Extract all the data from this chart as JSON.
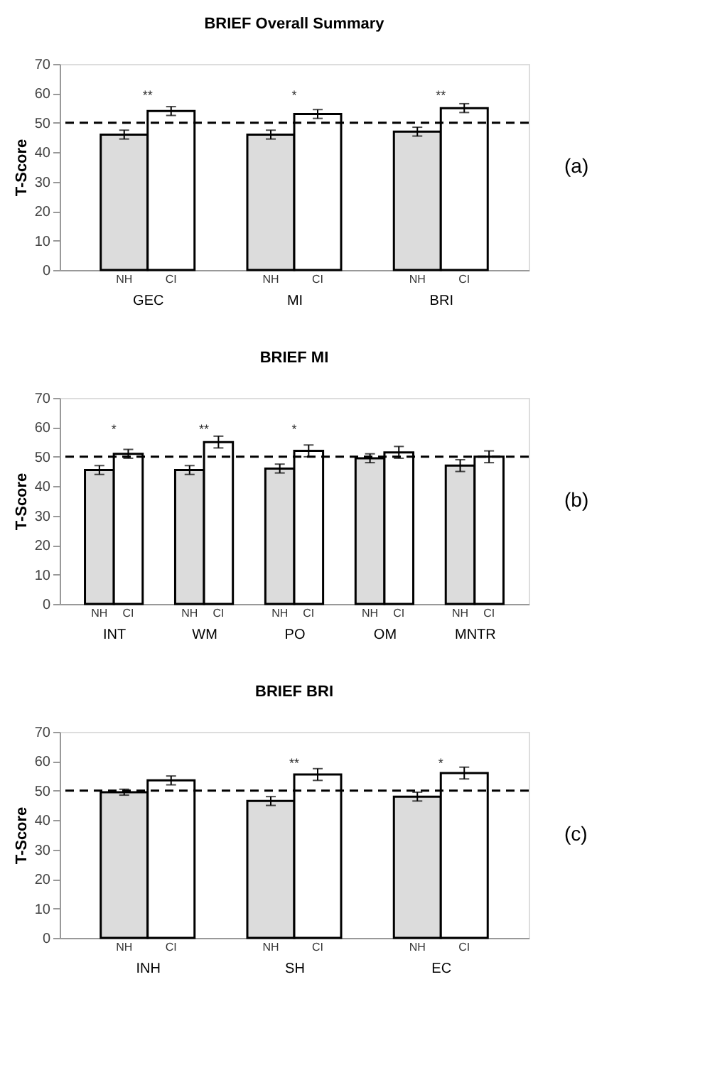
{
  "chart_data": [
    {
      "type": "bar",
      "title": "BRIEF Overall Summary",
      "ylabel": "T-Score",
      "categories": [
        "GEC",
        "MI",
        "BRI"
      ],
      "series": [
        {
          "name": "NH",
          "color": "#dcdcdc",
          "values": [
            46,
            46,
            47
          ],
          "errors": [
            1.5,
            1.5,
            1.5
          ]
        },
        {
          "name": "CI",
          "color": "#ffffff",
          "values": [
            54,
            53,
            55
          ],
          "errors": [
            1.5,
            1.5,
            1.5
          ]
        }
      ],
      "ylim": [
        0,
        70
      ],
      "yticks": [
        0,
        10,
        20,
        30,
        40,
        50,
        60,
        70
      ],
      "grid": false,
      "legend": false,
      "ref_lines": [
        {
          "axis": "y",
          "value": 50,
          "line_style": "dashed",
          "color": "#000000"
        }
      ],
      "annotations": [
        "**",
        "*",
        "**",
        "(a)"
      ]
    },
    {
      "type": "bar",
      "title": "BRIEF MI",
      "ylabel": "T-Score",
      "categories": [
        "INT",
        "WM",
        "PO",
        "OM",
        "MNTR"
      ],
      "series": [
        {
          "name": "NH",
          "color": "#dcdcdc",
          "values": [
            45.5,
            45.5,
            46,
            49.5,
            47
          ],
          "errors": [
            1.5,
            1.5,
            1.5,
            1.5,
            2
          ]
        },
        {
          "name": "CI",
          "color": "#ffffff",
          "values": [
            51,
            55,
            52,
            51.5,
            50
          ],
          "errors": [
            1.5,
            2,
            2,
            2,
            2
          ]
        }
      ],
      "ylim": [
        0,
        70
      ],
      "yticks": [
        0,
        10,
        20,
        30,
        40,
        50,
        60,
        70
      ],
      "grid": false,
      "legend": false,
      "ref_lines": [
        {
          "axis": "y",
          "value": 50,
          "line_style": "dashed",
          "color": "#000000"
        }
      ],
      "annotations": [
        "*",
        "**",
        "*",
        "(b)"
      ]
    },
    {
      "type": "bar",
      "title": "BRIEF BRI",
      "ylabel": "T-Score",
      "categories": [
        "INH",
        "SH",
        "EC"
      ],
      "series": [
        {
          "name": "NH",
          "color": "#e4e4e4",
          "values": [
            49.5,
            46.5,
            48
          ],
          "errors": [
            1,
            1.5,
            1.5
          ]
        },
        {
          "name": "CI",
          "color": "#ffffff",
          "values": [
            53.5,
            55.5,
            56
          ],
          "errors": [
            1.5,
            2,
            2
          ]
        }
      ],
      "ylim": [
        0,
        70
      ],
      "yticks": [
        0,
        10,
        20,
        30,
        40,
        50,
        60,
        70
      ],
      "grid": false,
      "legend": false,
      "ref_lines": [
        {
          "axis": "y",
          "value": 50,
          "line_style": "dashed",
          "color": "#000000"
        }
      ],
      "annotations": [
        "**",
        "*",
        "(c)"
      ]
    }
  ]
}
